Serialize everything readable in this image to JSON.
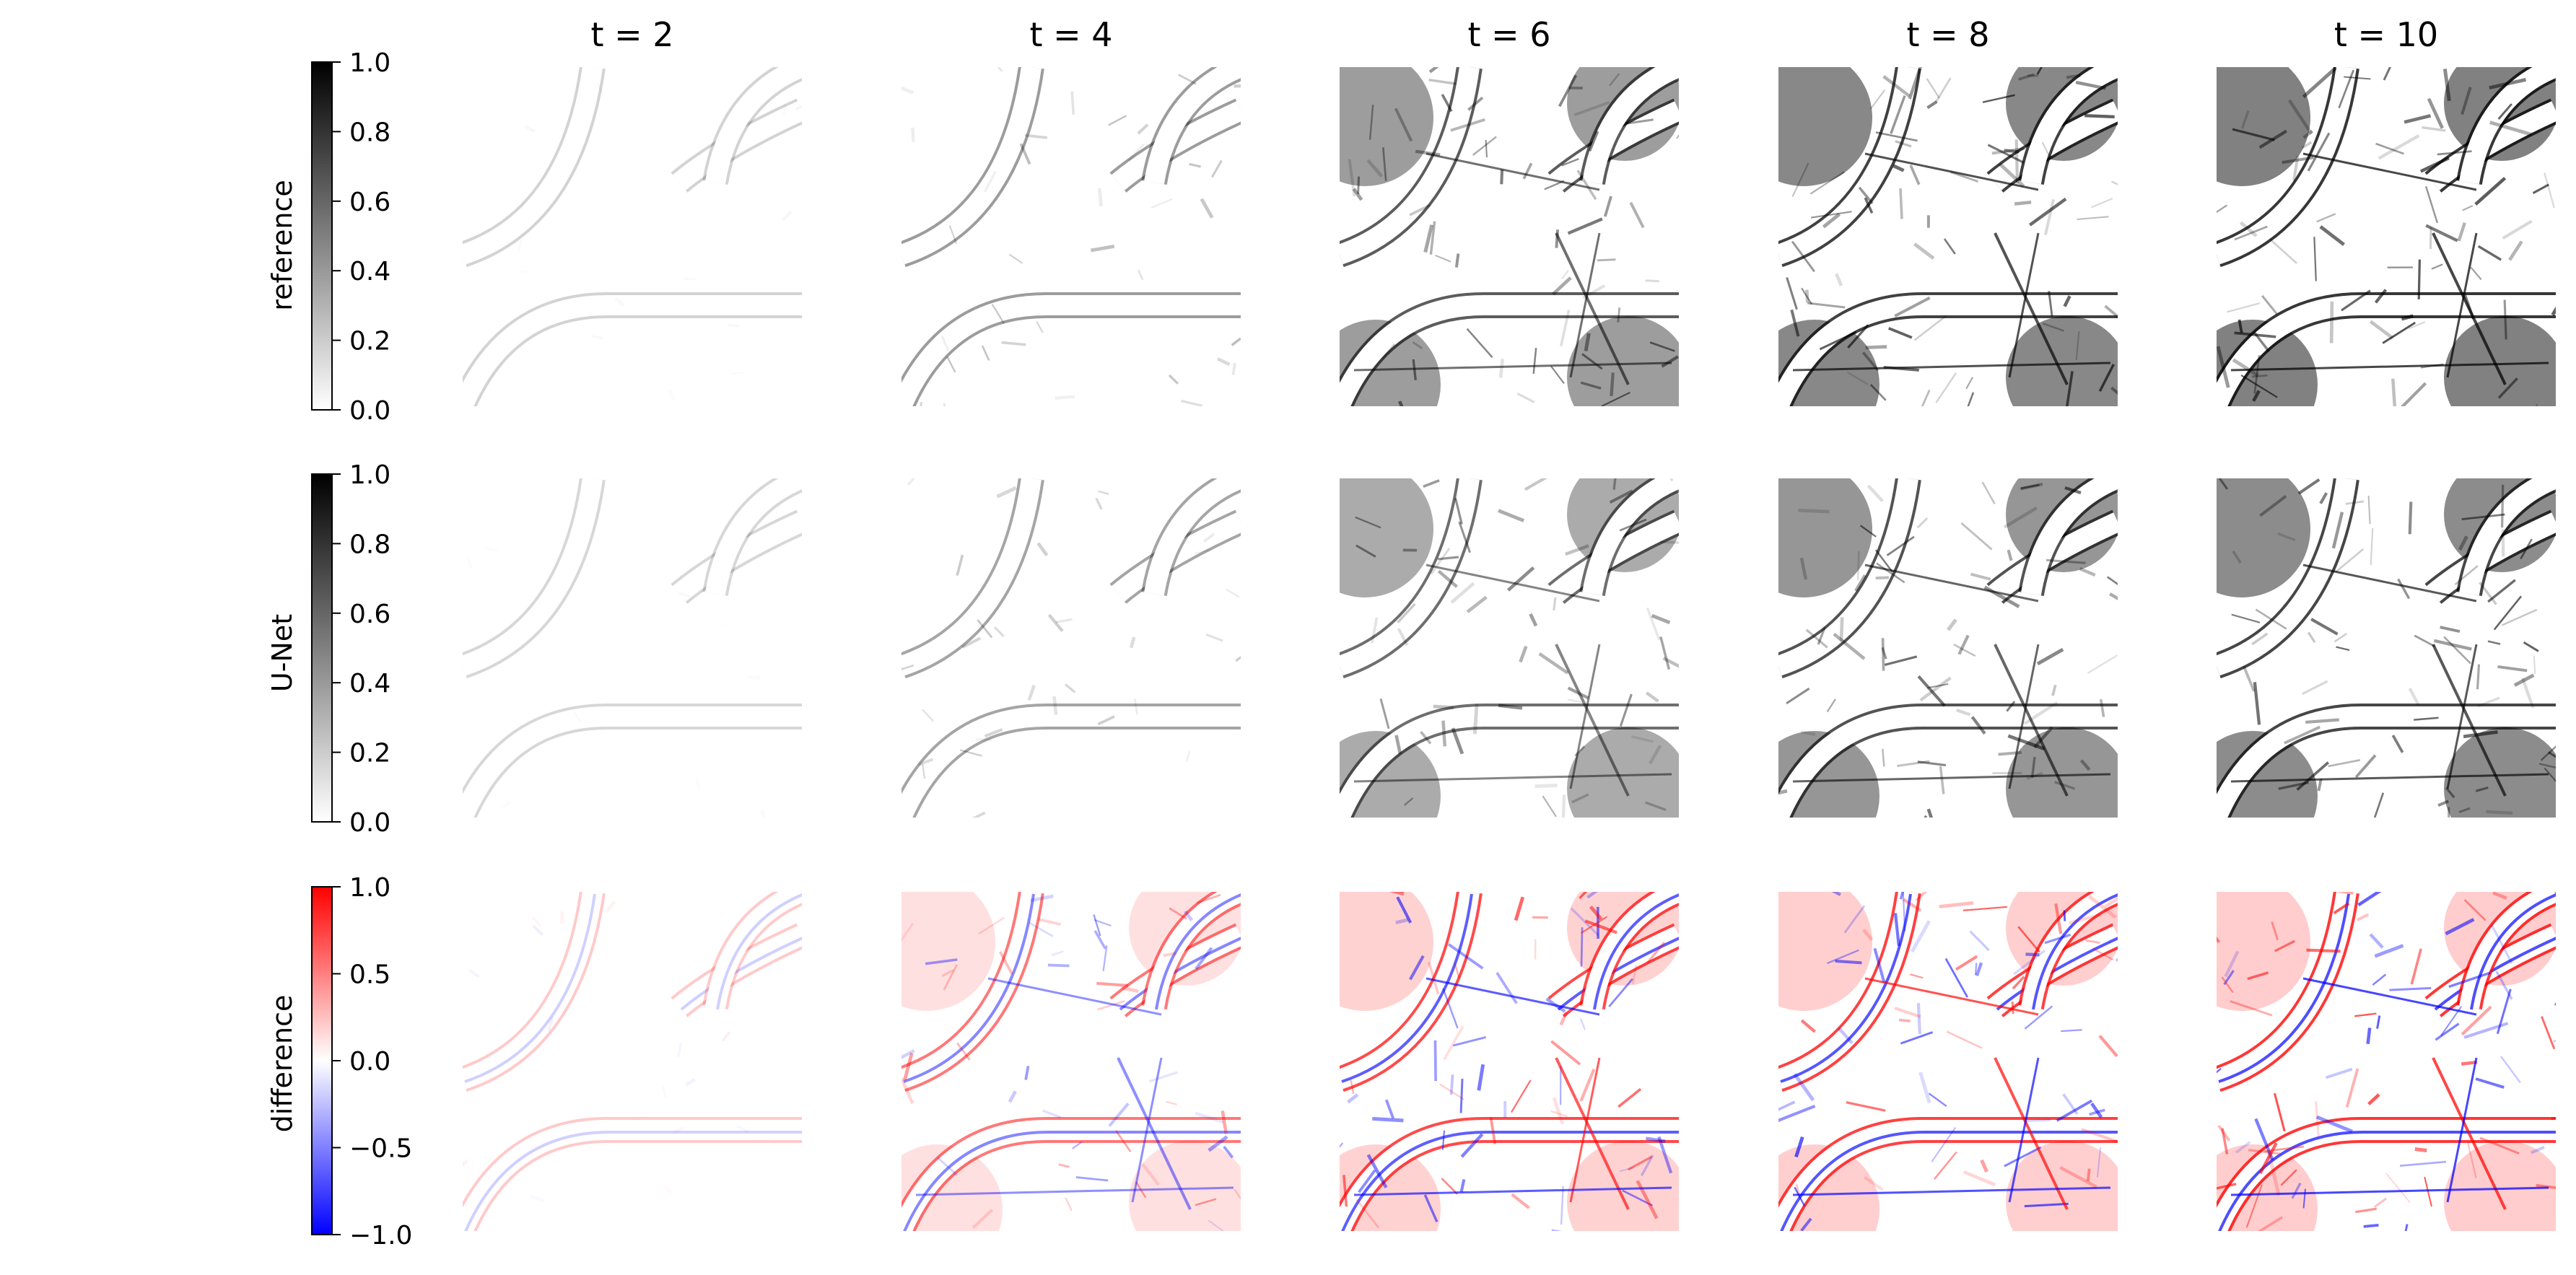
{
  "chart_data": {
    "type": "heatmap",
    "column_titles": [
      "t = 2",
      "t = 4",
      "t = 6",
      "t = 8",
      "t = 10"
    ],
    "time_steps": [
      2,
      4,
      6,
      8,
      10
    ],
    "rows": [
      {
        "label": "reference",
        "colormap": "greys",
        "colorbar": {
          "min": 0.0,
          "max": 1.0,
          "ticks": [
            0.0,
            0.2,
            0.4,
            0.6,
            0.8,
            1.0
          ],
          "tick_labels": [
            "0.0",
            "0.2",
            "0.4",
            "0.6",
            "0.8",
            "1.0"
          ]
        },
        "intensity_by_time": [
          0.05,
          0.35,
          0.7,
          0.85,
          0.9
        ]
      },
      {
        "label": "U-Net",
        "colormap": "greys",
        "colorbar": {
          "min": 0.0,
          "max": 1.0,
          "ticks": [
            0.0,
            0.2,
            0.4,
            0.6,
            0.8,
            1.0
          ],
          "tick_labels": [
            "0.0",
            "0.2",
            "0.4",
            "0.6",
            "0.8",
            "1.0"
          ]
        },
        "intensity_by_time": [
          0.03,
          0.3,
          0.6,
          0.75,
          0.82
        ]
      },
      {
        "label": "difference",
        "colormap": "bwr",
        "colorbar": {
          "min": -1.0,
          "max": 1.0,
          "ticks": [
            -1.0,
            -0.5,
            0.0,
            0.5,
            1.0
          ],
          "tick_labels": [
            "−1.0",
            "−0.5",
            "0.0",
            "0.5",
            "1.0"
          ]
        },
        "intensity_by_time": [
          0.1,
          0.55,
          0.8,
          0.85,
          0.9
        ]
      }
    ],
    "colors": {
      "greys_low": "#ffffff",
      "greys_high": "#000000",
      "bwr_low": "#0000ff",
      "bwr_mid": "#ffffff",
      "bwr_high": "#ff0000"
    }
  }
}
